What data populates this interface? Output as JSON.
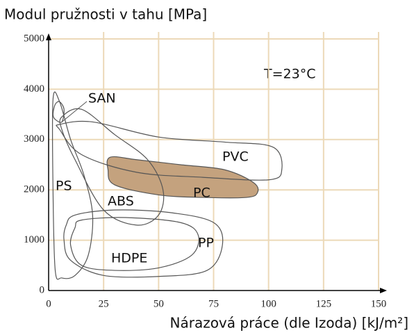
{
  "chart_data": {
    "type": "region",
    "title": "Modul pružnosti v tahu [MPa]",
    "xlabel": "Nárazová práce (dle Izoda) [kJ/m²]",
    "annotation": "T=23°C",
    "xlim": [
      0,
      150
    ],
    "xticks": [
      0,
      25,
      50,
      75,
      100,
      125,
      150
    ],
    "ylim": [
      0,
      5000
    ],
    "yticks": [
      0,
      1000,
      2000,
      3000,
      4000,
      5000
    ],
    "grid": true,
    "grid_color": "#ecd9b8",
    "line_color": "#555555",
    "series": [
      {
        "name": "SAN",
        "color": null,
        "x": [
          3,
          6,
          7,
          5,
          3,
          2
        ],
        "y": [
          3400,
          3350,
          3600,
          3750,
          3700,
          3500
        ]
      },
      {
        "name": "PS",
        "color": null,
        "x": [
          2,
          5,
          10,
          16,
          20,
          18,
          12,
          6,
          3,
          2
        ],
        "y": [
          3800,
          3750,
          3000,
          2300,
          1500,
          700,
          300,
          250,
          400,
          2000
        ]
      },
      {
        "name": "ABS",
        "color": null,
        "x": [
          6,
          15,
          30,
          45,
          52,
          50,
          40,
          25,
          12,
          6
        ],
        "y": [
          3450,
          3600,
          3100,
          2600,
          2000,
          1500,
          1300,
          1600,
          2600,
          3200
        ]
      },
      {
        "name": "PVC",
        "color": null,
        "x": [
          5,
          20,
          50,
          80,
          102,
          106,
          100,
          70,
          40,
          15,
          5
        ],
        "y": [
          3300,
          3350,
          3050,
          2950,
          2850,
          2400,
          2200,
          2250,
          2350,
          2700,
          3200
        ]
      },
      {
        "name": "PC",
        "color": "#c4a27e",
        "x": [
          28,
          40,
          60,
          80,
          93,
          95,
          90,
          70,
          50,
          30,
          27
        ],
        "y": [
          2650,
          2600,
          2500,
          2400,
          2150,
          1950,
          1850,
          1850,
          1900,
          2100,
          2400
        ]
      },
      {
        "name": "PP",
        "color": null,
        "x": [
          12,
          30,
          55,
          75,
          79,
          72,
          50,
          25,
          10,
          7,
          8
        ],
        "y": [
          1500,
          1600,
          1550,
          1350,
          900,
          400,
          280,
          300,
          600,
          1000,
          1300
        ]
      },
      {
        "name": "HDPE",
        "color": null,
        "x": [
          15,
          35,
          60,
          68,
          65,
          50,
          30,
          15,
          10,
          12
        ],
        "y": [
          1400,
          1450,
          1350,
          1100,
          700,
          450,
          400,
          500,
          900,
          1250
        ]
      }
    ]
  }
}
